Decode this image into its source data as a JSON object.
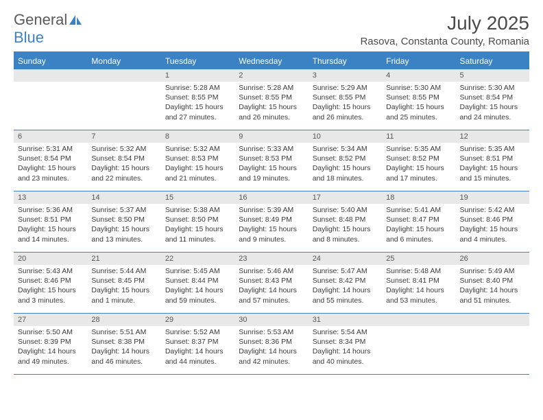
{
  "logo": {
    "part1": "General",
    "part2": "Blue"
  },
  "title": "July 2025",
  "location": "Rasova, Constanta County, Romania",
  "colors": {
    "accent": "#3b82c4",
    "header_bg": "#3b82c4",
    "header_text": "#ffffff",
    "daynum_bg": "#e8e8e8",
    "text": "#3a3a3a",
    "logo_gray": "#5a5a5a"
  },
  "day_names": [
    "Sunday",
    "Monday",
    "Tuesday",
    "Wednesday",
    "Thursday",
    "Friday",
    "Saturday"
  ],
  "weeks": [
    [
      null,
      null,
      {
        "n": "1",
        "sr": "5:28 AM",
        "ss": "8:55 PM",
        "dl": "15 hours and 27 minutes."
      },
      {
        "n": "2",
        "sr": "5:28 AM",
        "ss": "8:55 PM",
        "dl": "15 hours and 26 minutes."
      },
      {
        "n": "3",
        "sr": "5:29 AM",
        "ss": "8:55 PM",
        "dl": "15 hours and 26 minutes."
      },
      {
        "n": "4",
        "sr": "5:30 AM",
        "ss": "8:55 PM",
        "dl": "15 hours and 25 minutes."
      },
      {
        "n": "5",
        "sr": "5:30 AM",
        "ss": "8:54 PM",
        "dl": "15 hours and 24 minutes."
      }
    ],
    [
      {
        "n": "6",
        "sr": "5:31 AM",
        "ss": "8:54 PM",
        "dl": "15 hours and 23 minutes."
      },
      {
        "n": "7",
        "sr": "5:32 AM",
        "ss": "8:54 PM",
        "dl": "15 hours and 22 minutes."
      },
      {
        "n": "8",
        "sr": "5:32 AM",
        "ss": "8:53 PM",
        "dl": "15 hours and 21 minutes."
      },
      {
        "n": "9",
        "sr": "5:33 AM",
        "ss": "8:53 PM",
        "dl": "15 hours and 19 minutes."
      },
      {
        "n": "10",
        "sr": "5:34 AM",
        "ss": "8:52 PM",
        "dl": "15 hours and 18 minutes."
      },
      {
        "n": "11",
        "sr": "5:35 AM",
        "ss": "8:52 PM",
        "dl": "15 hours and 17 minutes."
      },
      {
        "n": "12",
        "sr": "5:35 AM",
        "ss": "8:51 PM",
        "dl": "15 hours and 15 minutes."
      }
    ],
    [
      {
        "n": "13",
        "sr": "5:36 AM",
        "ss": "8:51 PM",
        "dl": "15 hours and 14 minutes."
      },
      {
        "n": "14",
        "sr": "5:37 AM",
        "ss": "8:50 PM",
        "dl": "15 hours and 13 minutes."
      },
      {
        "n": "15",
        "sr": "5:38 AM",
        "ss": "8:50 PM",
        "dl": "15 hours and 11 minutes."
      },
      {
        "n": "16",
        "sr": "5:39 AM",
        "ss": "8:49 PM",
        "dl": "15 hours and 9 minutes."
      },
      {
        "n": "17",
        "sr": "5:40 AM",
        "ss": "8:48 PM",
        "dl": "15 hours and 8 minutes."
      },
      {
        "n": "18",
        "sr": "5:41 AM",
        "ss": "8:47 PM",
        "dl": "15 hours and 6 minutes."
      },
      {
        "n": "19",
        "sr": "5:42 AM",
        "ss": "8:46 PM",
        "dl": "15 hours and 4 minutes."
      }
    ],
    [
      {
        "n": "20",
        "sr": "5:43 AM",
        "ss": "8:46 PM",
        "dl": "15 hours and 3 minutes."
      },
      {
        "n": "21",
        "sr": "5:44 AM",
        "ss": "8:45 PM",
        "dl": "15 hours and 1 minute."
      },
      {
        "n": "22",
        "sr": "5:45 AM",
        "ss": "8:44 PM",
        "dl": "14 hours and 59 minutes."
      },
      {
        "n": "23",
        "sr": "5:46 AM",
        "ss": "8:43 PM",
        "dl": "14 hours and 57 minutes."
      },
      {
        "n": "24",
        "sr": "5:47 AM",
        "ss": "8:42 PM",
        "dl": "14 hours and 55 minutes."
      },
      {
        "n": "25",
        "sr": "5:48 AM",
        "ss": "8:41 PM",
        "dl": "14 hours and 53 minutes."
      },
      {
        "n": "26",
        "sr": "5:49 AM",
        "ss": "8:40 PM",
        "dl": "14 hours and 51 minutes."
      }
    ],
    [
      {
        "n": "27",
        "sr": "5:50 AM",
        "ss": "8:39 PM",
        "dl": "14 hours and 49 minutes."
      },
      {
        "n": "28",
        "sr": "5:51 AM",
        "ss": "8:38 PM",
        "dl": "14 hours and 46 minutes."
      },
      {
        "n": "29",
        "sr": "5:52 AM",
        "ss": "8:37 PM",
        "dl": "14 hours and 44 minutes."
      },
      {
        "n": "30",
        "sr": "5:53 AM",
        "ss": "8:36 PM",
        "dl": "14 hours and 42 minutes."
      },
      {
        "n": "31",
        "sr": "5:54 AM",
        "ss": "8:34 PM",
        "dl": "14 hours and 40 minutes."
      },
      null,
      null
    ]
  ],
  "labels": {
    "sunrise": "Sunrise:",
    "sunset": "Sunset:",
    "daylight": "Daylight:"
  }
}
